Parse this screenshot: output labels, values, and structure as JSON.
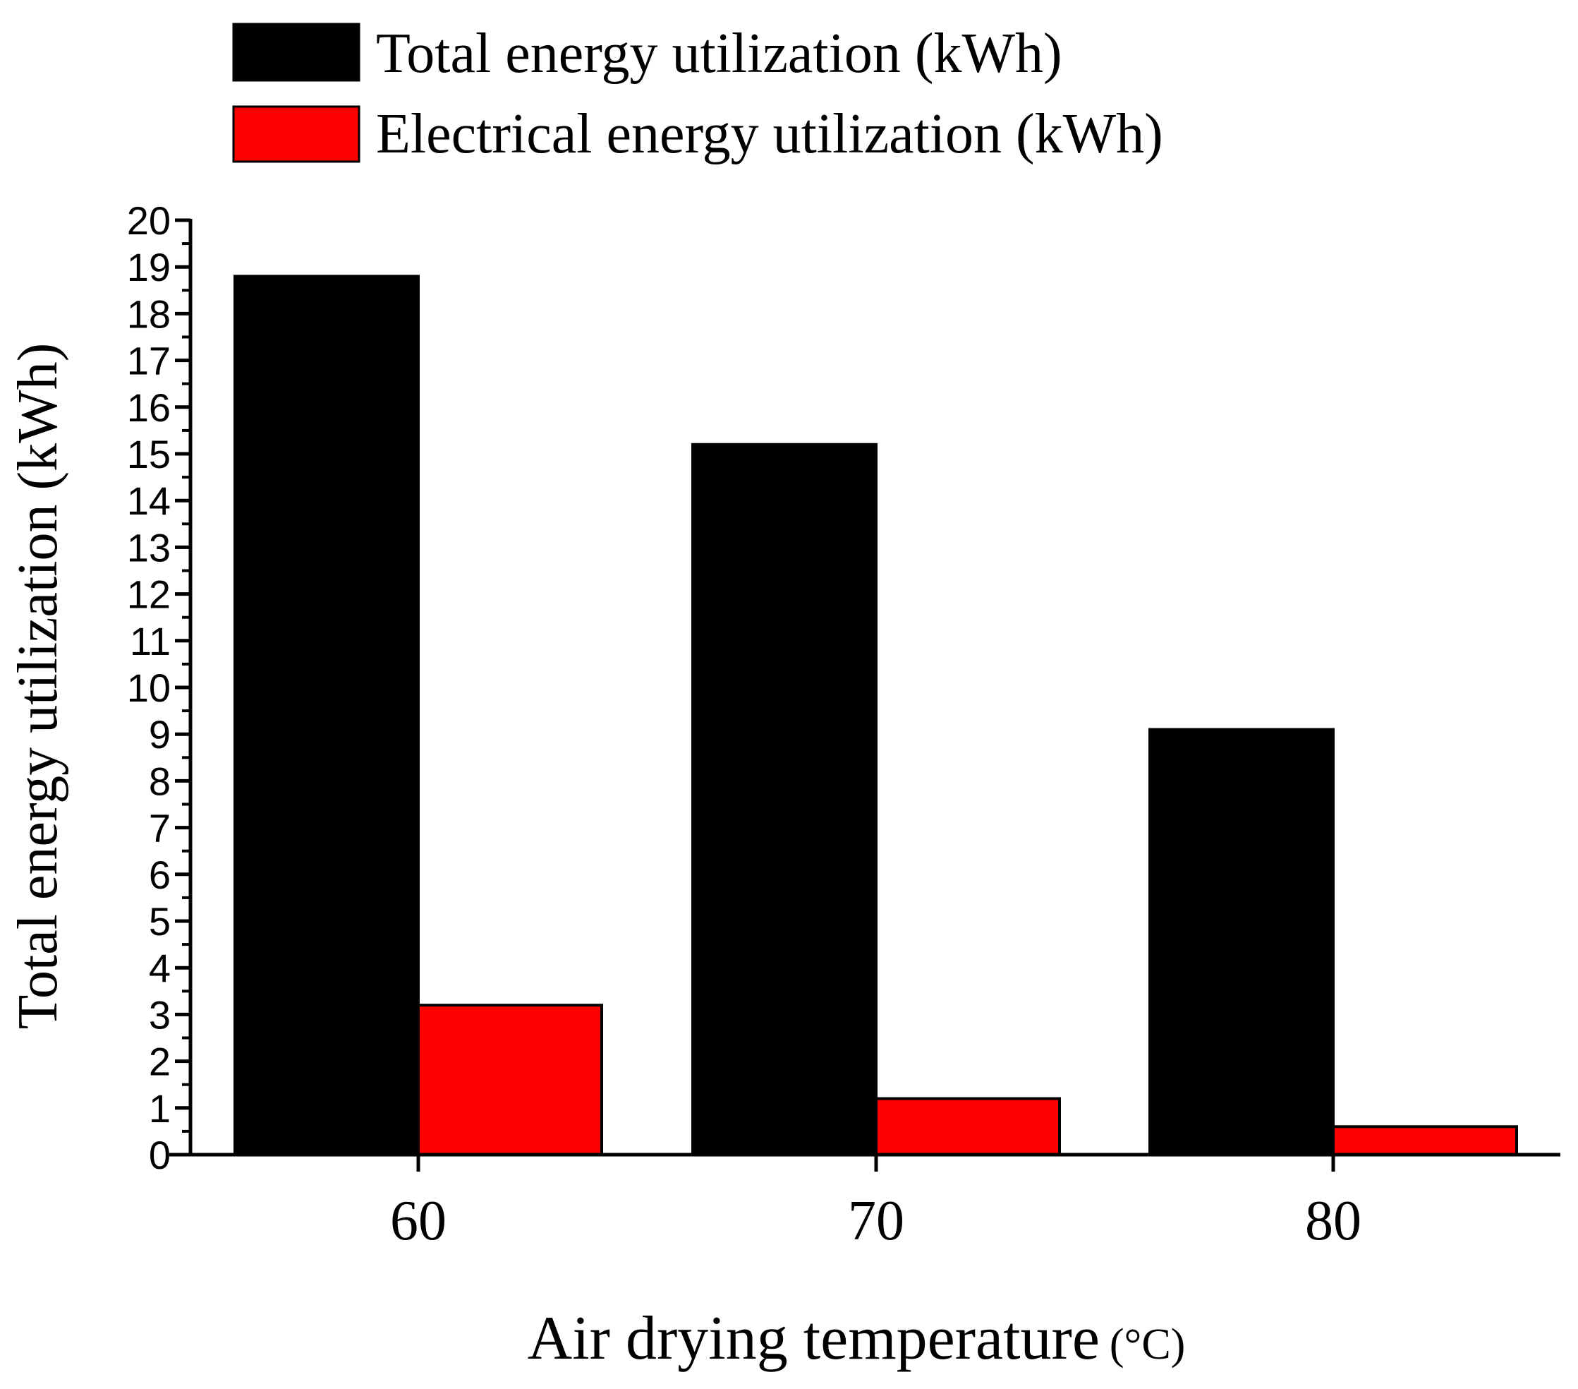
{
  "chart_data": {
    "type": "bar",
    "categories": [
      "60",
      "70",
      "80"
    ],
    "series": [
      {
        "name": "Total energy utilization (kWh)",
        "color": "#000000",
        "values": [
          18.8,
          15.2,
          9.1
        ]
      },
      {
        "name": "Electrical energy utilization (kWh)",
        "color": "#ff0000",
        "values": [
          3.2,
          1.2,
          0.6
        ]
      }
    ],
    "xlabel": "Air drying temperature",
    "xlabel_unit": "(°C)",
    "ylabel": "Total energy utilization (kWh)",
    "ylim": [
      0,
      20
    ],
    "yticks": [
      "0",
      "1",
      "2",
      "3",
      "4",
      "5",
      "6",
      "7",
      "8",
      "9",
      "10",
      "11",
      "12",
      "13",
      "14",
      "15",
      "16",
      "17",
      "18",
      "19",
      "20"
    ],
    "grid": false,
    "legend_position": "top-left"
  }
}
